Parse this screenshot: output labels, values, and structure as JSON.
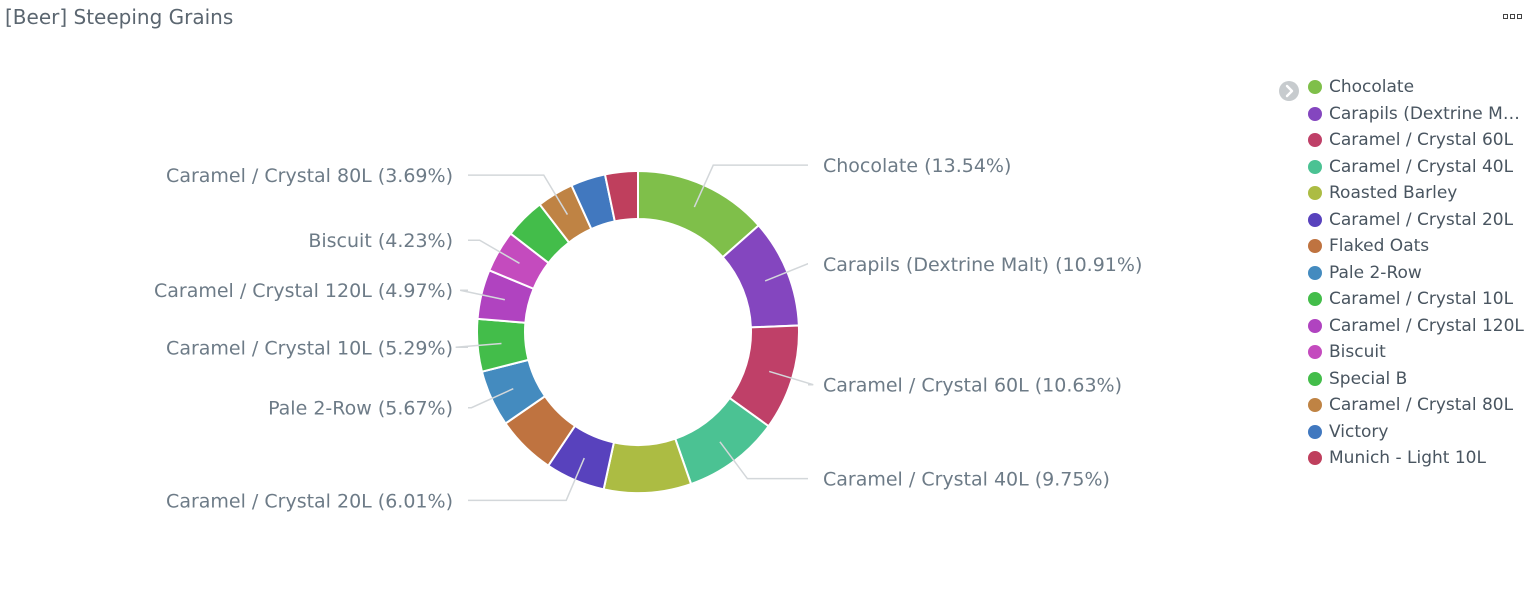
{
  "panel": {
    "title": "[Beer] Steeping Grains"
  },
  "icons": {
    "menu": "options-dots-icon",
    "legend_toggle": "chevron-right-icon"
  },
  "chart_data": {
    "type": "pie",
    "donut": true,
    "slices": [
      {
        "label": "Chocolate",
        "percent": 13.54,
        "color": "#7fbf4a",
        "label_text": "Chocolate (13.54%)"
      },
      {
        "label": "Carapils (Dextrine Malt)",
        "percent": 10.91,
        "color": "#8446bf",
        "label_text": "Carapils (Dextrine Malt) (10.91%)"
      },
      {
        "label": "Caramel / Crystal 60L",
        "percent": 10.63,
        "color": "#bf4068",
        "label_text": "Caramel / Crystal 60L (10.63%)"
      },
      {
        "label": "Caramel / Crystal 40L",
        "percent": 9.75,
        "color": "#4bc293",
        "label_text": "Caramel / Crystal 40L (9.75%)"
      },
      {
        "label": "Roasted Barley",
        "percent": 8.8,
        "color": "#acbc43",
        "label_text": ""
      },
      {
        "label": "Caramel / Crystal 20L",
        "percent": 6.01,
        "color": "#5842bd",
        "label_text": "Caramel / Crystal 20L (6.01%)"
      },
      {
        "label": "Flaked Oats",
        "percent": 6.0,
        "color": "#bf7340",
        "label_text": ""
      },
      {
        "label": "Pale 2-Row",
        "percent": 5.67,
        "color": "#448bbf",
        "label_text": "Pale 2-Row (5.67%)"
      },
      {
        "label": "Caramel / Crystal 10L",
        "percent": 5.29,
        "color": "#43bd4a",
        "label_text": "Caramel / Crystal 10L (5.29%)"
      },
      {
        "label": "Caramel / Crystal 120L",
        "percent": 4.97,
        "color": "#b043c0",
        "label_text": "Caramel / Crystal 120L (4.97%)"
      },
      {
        "label": "Biscuit",
        "percent": 4.23,
        "color": "#c44bbe",
        "label_text": "Biscuit (4.23%)"
      },
      {
        "label": "Special B",
        "percent": 4.1,
        "color": "#43bd4a",
        "label_text": ""
      },
      {
        "label": "Caramel / Crystal 80L",
        "percent": 3.69,
        "color": "#bf8344",
        "label_text": "Caramel / Crystal 80L (3.69%)"
      },
      {
        "label": "Victory",
        "percent": 3.5,
        "color": "#4178bf",
        "label_text": ""
      },
      {
        "label": "Munich - Light 10L",
        "percent": 3.3,
        "color": "#bf3f5d",
        "label_text": ""
      }
    ]
  },
  "legend": {
    "items": [
      {
        "label": "Chocolate",
        "color": "#7fbf4a"
      },
      {
        "label": "Carapils (Dextrine Malt)",
        "color": "#8446bf"
      },
      {
        "label": "Caramel / Crystal 60L",
        "color": "#bf4068"
      },
      {
        "label": "Caramel / Crystal 40L",
        "color": "#4bc293"
      },
      {
        "label": "Roasted Barley",
        "color": "#acbc43"
      },
      {
        "label": "Caramel / Crystal 20L",
        "color": "#5842bd"
      },
      {
        "label": "Flaked Oats",
        "color": "#bf7340"
      },
      {
        "label": "Pale 2-Row",
        "color": "#448bbf"
      },
      {
        "label": "Caramel / Crystal 10L",
        "color": "#43bd4a"
      },
      {
        "label": "Caramel / Crystal 120L",
        "color": "#b043c0"
      },
      {
        "label": "Biscuit",
        "color": "#c44bbe"
      },
      {
        "label": "Special B",
        "color": "#43bd4a"
      },
      {
        "label": "Caramel / Crystal 80L",
        "color": "#bf8344"
      },
      {
        "label": "Victory",
        "color": "#4178bf"
      },
      {
        "label": "Munich - Light 10L",
        "color": "#bf3f5d"
      }
    ]
  }
}
